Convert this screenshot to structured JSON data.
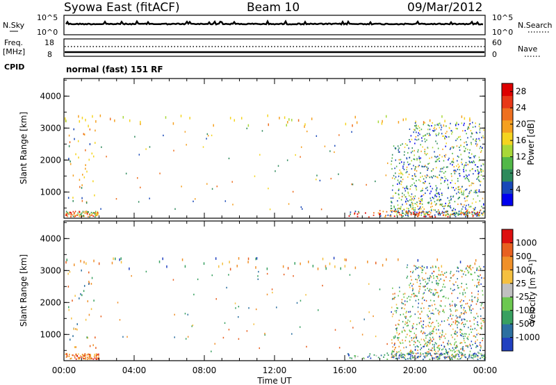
{
  "header": {
    "title": "Syowa East (fitACF)",
    "beam": "Beam 10",
    "date": "09/Mar/2012"
  },
  "top_panels": {
    "nsky_label": "N.Sky",
    "nsky_ticks": [
      "10^5",
      "10^0"
    ],
    "nsearch_label": "N.Search",
    "nsearch_ticks": [
      "10^5",
      "10^0"
    ],
    "freq_label": "Freq.",
    "freq_unit": "[MHz]",
    "freq_ticks": [
      "18",
      "8"
    ],
    "nave_label": "Nave",
    "nave_ticks": [
      "60",
      "0"
    ],
    "cpid_label": "CPID",
    "cpid_text": "normal (fast) 151 RF"
  },
  "chart_data": [
    {
      "type": "heatmap",
      "name": "power",
      "ylabel": "Slant Range [km]",
      "ylim": [
        180,
        4550
      ],
      "y_ticks": [
        "4000",
        "3000",
        "2000",
        "1000"
      ],
      "y_tick_values": [
        4000,
        3000,
        2000,
        1000
      ],
      "xlim": [
        0,
        24
      ],
      "colorbar": {
        "label": "Power [dB]",
        "ticks": [
          "28",
          "24",
          "20",
          "16",
          "12",
          "8",
          "4"
        ],
        "tick_values": [
          28,
          24,
          20,
          16,
          12,
          8,
          4
        ],
        "range": [
          0,
          30
        ],
        "colors": [
          "#0000ee",
          "#1848b8",
          "#2e8a5c",
          "#52b848",
          "#a8d838",
          "#f5d420",
          "#f5a020",
          "#ee7020",
          "#e83818",
          "#dd0000"
        ]
      }
    },
    {
      "type": "heatmap",
      "name": "velocity",
      "ylabel": "Slant Range [km]",
      "ylim": [
        180,
        4550
      ],
      "y_ticks": [
        "4000",
        "3000",
        "2000",
        "1000"
      ],
      "y_tick_values": [
        4000,
        3000,
        2000,
        1000
      ],
      "xlim": [
        0,
        24
      ],
      "x_ticks": [
        "00:00",
        "04:00",
        "08:00",
        "12:00",
        "16:00",
        "20:00",
        "00:00"
      ],
      "x_tick_values": [
        0,
        4,
        8,
        12,
        16,
        20,
        24
      ],
      "xlabel": "Time UT",
      "colorbar": {
        "label": "Velocity [m s⁻¹]",
        "ticks": [
          "1000",
          "500",
          "100",
          "25",
          "-25",
          "-100",
          "-500",
          "-1000"
        ],
        "colors": [
          "#2040c0",
          "#2c70a0",
          "#38a060",
          "#6cc850",
          "#c0c0c0",
          "#f5c040",
          "#f09028",
          "#e86020",
          "#dd1010"
        ]
      }
    }
  ]
}
